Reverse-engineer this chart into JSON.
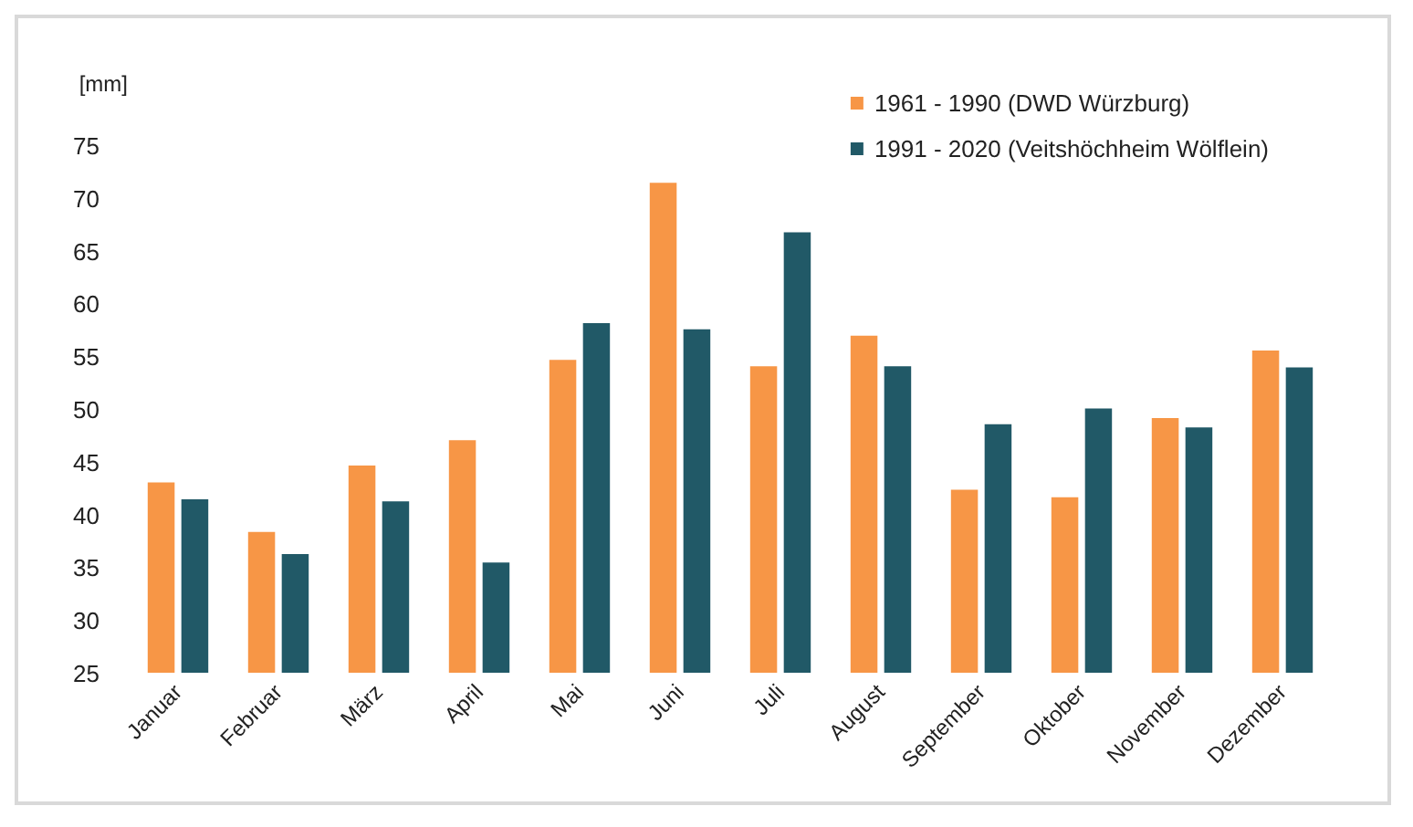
{
  "chart_data": {
    "type": "bar",
    "ylabel": "[mm]",
    "categories": [
      "Januar",
      "Februar",
      "März",
      "April",
      "Mai",
      "Juni",
      "Juli",
      "August",
      "September",
      "Oktober",
      "November",
      "Dezember"
    ],
    "series": [
      {
        "name": "1961 - 1990 (DWD Würzburg)",
        "color": "#f79646",
        "values": [
          43.3,
          38.6,
          44.9,
          47.3,
          54.9,
          71.7,
          54.3,
          57.2,
          42.6,
          41.9,
          49.4,
          55.8
        ]
      },
      {
        "name": "1991 - 2020 (Veitshöchheim Wölflein)",
        "color": "#215967",
        "values": [
          41.7,
          36.5,
          41.5,
          35.7,
          58.4,
          57.8,
          67.0,
          54.3,
          48.8,
          50.3,
          48.5,
          54.2
        ]
      }
    ],
    "ylim": [
      25,
      75
    ],
    "yticks": [
      25,
      30,
      35,
      40,
      45,
      50,
      55,
      60,
      65,
      70,
      75
    ],
    "grid": false,
    "legend": "top right"
  }
}
